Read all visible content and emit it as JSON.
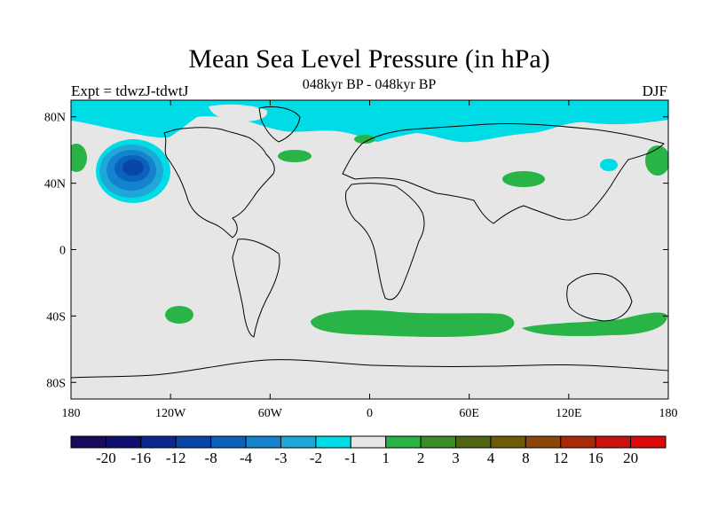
{
  "header": {
    "title": "Mean Sea Level Pressure (in hPa)",
    "subtitle": "048kyr BP - 048kyr BP",
    "expt": "Expt = tdwzJ-tdwtJ",
    "season": "DJF"
  },
  "axes": {
    "x_ticks": [
      {
        "value": -180,
        "label": "180"
      },
      {
        "value": -120,
        "label": "120W"
      },
      {
        "value": -60,
        "label": "60W"
      },
      {
        "value": 0,
        "label": "0"
      },
      {
        "value": 60,
        "label": "60E"
      },
      {
        "value": 120,
        "label": "120E"
      },
      {
        "value": 180,
        "label": "180"
      }
    ],
    "y_ticks": [
      {
        "value": 80,
        "label": "80N"
      },
      {
        "value": 40,
        "label": "40N"
      },
      {
        "value": 0,
        "label": "0"
      },
      {
        "value": -40,
        "label": "40S"
      },
      {
        "value": -80,
        "label": "80S"
      }
    ]
  },
  "colorbar": {
    "colors": [
      "#1a0a5c",
      "#10106e",
      "#0a2890",
      "#0a46a8",
      "#0a62bc",
      "#1482cc",
      "#1ea8d8",
      "#00dce6",
      "#e6e6e6",
      "#28b446",
      "#3c8c28",
      "#506414",
      "#6e5a0a",
      "#8c460a",
      "#a82a08",
      "#c81410",
      "#dc0a0a"
    ],
    "labels": [
      "-20",
      "-16",
      "-12",
      "-8",
      "-4",
      "-3",
      "-2",
      "-1",
      "1",
      "2",
      "3",
      "4",
      "8",
      "12",
      "16",
      "20"
    ]
  },
  "colors": {
    "neutral": "#e6e6e6",
    "neg1": "#00dce6",
    "neg2": "#1ea8d8",
    "neg3": "#1482cc",
    "neg4": "#0a62bc",
    "neg8": "#0a46a8",
    "pos1": "#28b446"
  }
}
